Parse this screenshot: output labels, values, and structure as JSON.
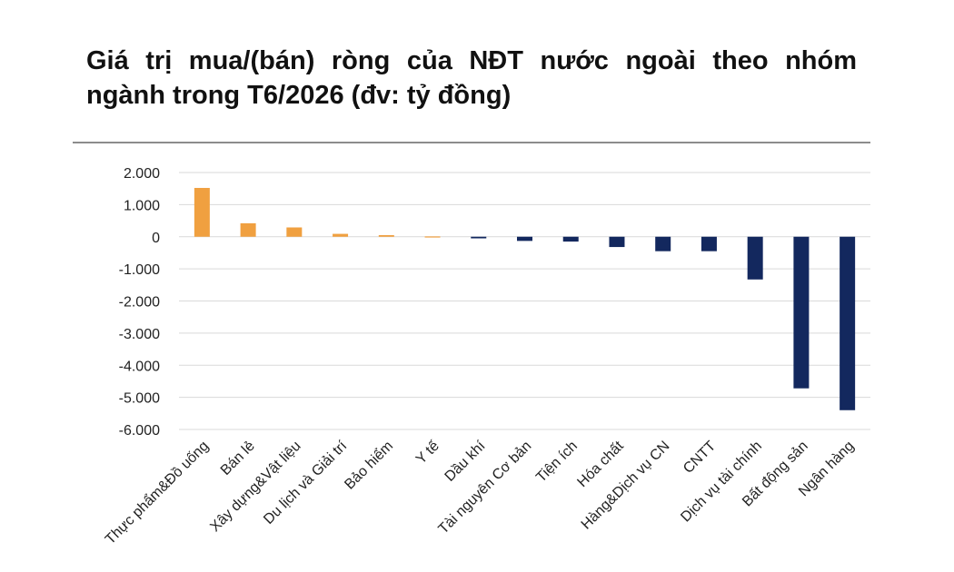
{
  "chart_data": {
    "type": "bar",
    "title": "Giá trị mua/(bán) ròng của NĐT nước ngoài theo nhóm ngành trong T6/2026 (đv: tỷ đồng)",
    "xlabel": "",
    "ylabel": "",
    "ylim": [
      -6000,
      2000
    ],
    "yticks": [
      2000,
      1000,
      0,
      -1000,
      -2000,
      -3000,
      -4000,
      -5000,
      -6000
    ],
    "ytick_labels": [
      "2.000",
      "1.000",
      "0",
      "-1.000",
      "-2.000",
      "-3.000",
      "-4.000",
      "-5.000",
      "-6.000"
    ],
    "grid": true,
    "legend": "none",
    "categories": [
      "Thực phẩm&Đồ uống",
      "Bán lẻ",
      "Xây dựng&Vật liệu",
      "Du lịch và Giải trí",
      "Bảo hiểm",
      "Y tế",
      "Dầu khí",
      "Tài nguyên Cơ bản",
      "Tiện ích",
      "Hóa chất",
      "Hàng&Dịch vụ CN",
      "CNTT",
      "Dịch vụ tài chính",
      "Bất động sản",
      "Ngân hàng"
    ],
    "values": [
      1520,
      420,
      290,
      90,
      50,
      10,
      -50,
      -130,
      -150,
      -320,
      -450,
      -450,
      -1330,
      -4720,
      -5400
    ],
    "colors": {
      "positive": "#F0A040",
      "negative": "#13285E",
      "grid": "#d9d9d9"
    }
  }
}
